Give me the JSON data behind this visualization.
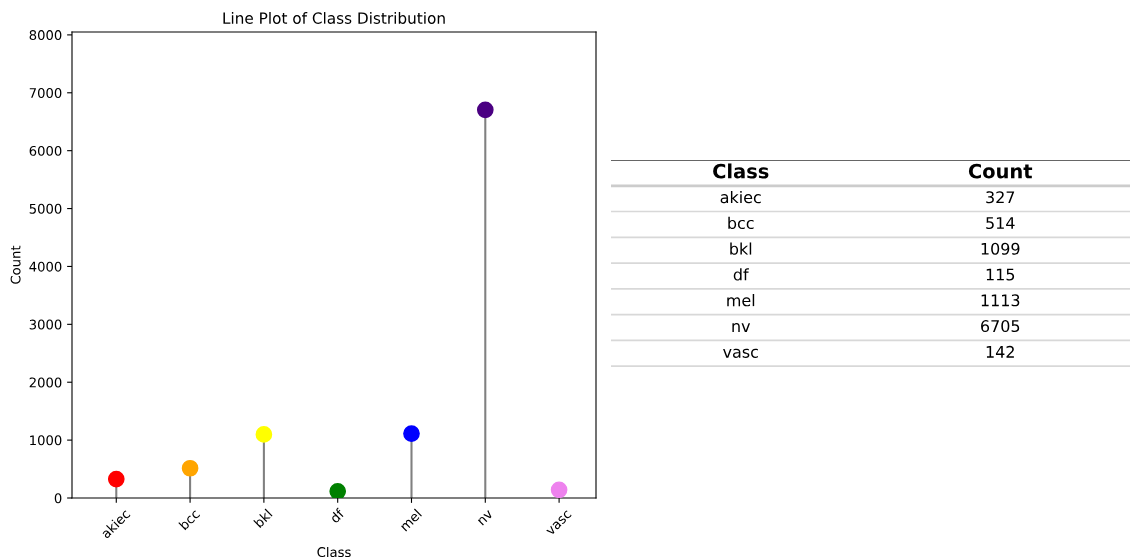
{
  "chart_data": [
    {
      "type": "lollipop",
      "title": "Line Plot of Class Distribution",
      "xlabel": "Class",
      "ylabel": "Count",
      "categories": [
        "akiec",
        "bcc",
        "bkl",
        "df",
        "mel",
        "nv",
        "vasc"
      ],
      "values": [
        327,
        514,
        1099,
        115,
        1113,
        6705,
        142
      ],
      "colors": [
        "#ff0000",
        "#ffa500",
        "#ffff00",
        "#008000",
        "#0000ff",
        "#4b0082",
        "#ee82ee"
      ],
      "ylim": [
        0,
        8050
      ],
      "yticks": [
        0,
        1000,
        2000,
        3000,
        4000,
        5000,
        6000,
        7000,
        8000
      ],
      "marker": "circle"
    },
    {
      "type": "other",
      "annotations": [
        "Class",
        "Count",
        "akiec",
        "327",
        "bcc",
        "514",
        "bkl",
        "1099",
        "df",
        "115",
        "mel",
        "1113",
        "nv",
        "6705",
        "vasc",
        "142"
      ]
    }
  ]
}
